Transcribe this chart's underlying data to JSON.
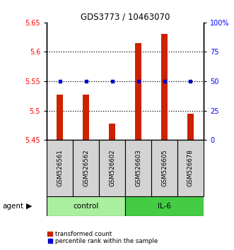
{
  "title": "GDS3773 / 10463070",
  "samples": [
    "GSM526561",
    "GSM526562",
    "GSM526602",
    "GSM526603",
    "GSM526605",
    "GSM526678"
  ],
  "groups": [
    "control",
    "control",
    "control",
    "IL-6",
    "IL-6",
    "IL-6"
  ],
  "transformed_counts": [
    5.527,
    5.527,
    5.478,
    5.615,
    5.63,
    5.495
  ],
  "percentile_ranks": [
    50,
    50,
    50,
    50,
    50,
    50
  ],
  "ylim_left": [
    5.45,
    5.65
  ],
  "ylim_right": [
    0,
    100
  ],
  "yticks_left": [
    5.45,
    5.5,
    5.55,
    5.6,
    5.65
  ],
  "yticks_right": [
    0,
    25,
    50,
    75,
    100
  ],
  "ytick_labels_left": [
    "5.45",
    "5.5",
    "5.55",
    "5.6",
    "5.65"
  ],
  "ytick_labels_right": [
    "0",
    "25",
    "50",
    "75",
    "100%"
  ],
  "bar_color": "#CC2200",
  "dot_color": "#0000CC",
  "control_color": "#AAEEA0",
  "il6_color": "#44CC44",
  "group_label_control": "control",
  "group_label_il6": "IL-6",
  "agent_label": "agent",
  "legend_bar": "transformed count",
  "legend_dot": "percentile rank within the sample",
  "hlines": [
    5.5,
    5.55,
    5.6
  ],
  "bar_bottom": 5.45
}
